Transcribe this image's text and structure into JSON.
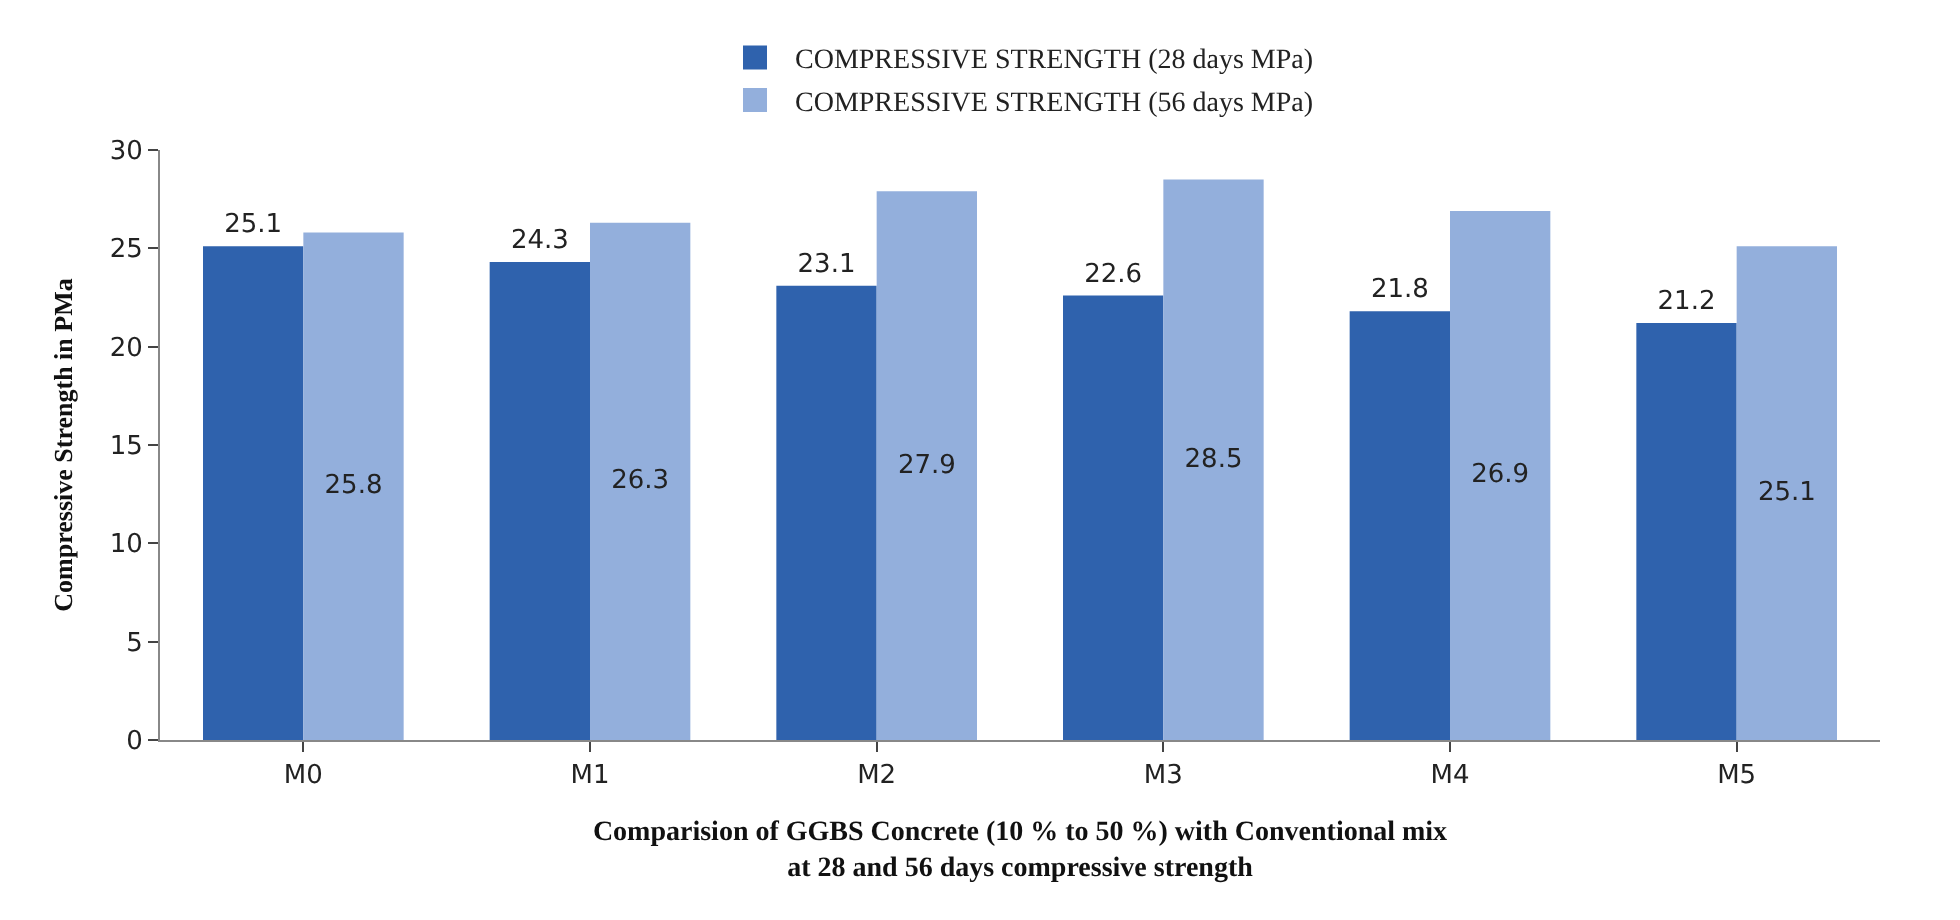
{
  "chart_data": {
    "type": "bar",
    "xlabel": "Comparision of GGBS Concrete (10 % to 50 %) with Conventional mix\nat 28 and 56 days compressive strength",
    "ylabel": "Compressive Strength in PMa",
    "categories": [
      "M0",
      "M1",
      "M2",
      "M3",
      "M4",
      "M5"
    ],
    "series": [
      {
        "name": "COMPRESSIVE STRENGTH (28 days MPa)",
        "color": "#2f62ad",
        "values": [
          25.1,
          24.3,
          23.1,
          22.6,
          21.8,
          21.2
        ]
      },
      {
        "name": "COMPRESSIVE STRENGTH (56 days MPa)",
        "color": "#93afdc",
        "values": [
          25.8,
          26.3,
          27.9,
          28.5,
          26.9,
          25.1
        ]
      }
    ],
    "ylim": [
      0,
      30
    ],
    "yticks": [
      0,
      5,
      10,
      15,
      20,
      25,
      30
    ],
    "grid": false,
    "legend": "top",
    "data_labels": true
  }
}
